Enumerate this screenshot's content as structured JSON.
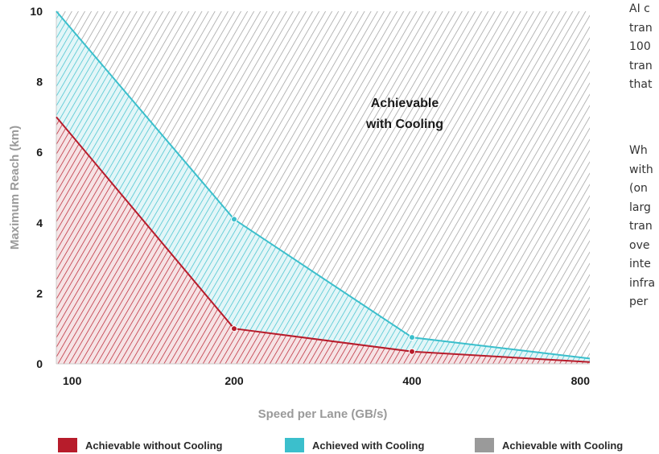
{
  "chart_data": {
    "type": "area",
    "x": [
      100,
      200,
      400,
      800
    ],
    "x_tick_labels": [
      "100",
      "200",
      "400",
      "800"
    ],
    "x_scale": "log",
    "xlabel": "Speed per Lane (GB/s)",
    "ylabel": "Maximum Reach (km)",
    "ylim": [
      0,
      10
    ],
    "y_ticks": [
      0,
      2,
      4,
      6,
      8,
      10
    ],
    "series": [
      {
        "name": "Achievable without Cooling",
        "color": "#b71c2b",
        "values": [
          7.0,
          1.0,
          0.35,
          0.05
        ],
        "marked_points": [
          1,
          2
        ]
      },
      {
        "name": "Achieved with Cooling",
        "color": "#3bbfcc",
        "values": [
          10.3,
          4.1,
          0.75,
          0.15
        ],
        "marked_points": [
          1,
          2
        ]
      }
    ],
    "background_region": {
      "name": "Achievable with Cooling",
      "color": "#9a9a9a"
    },
    "annotation": [
      "Achievable",
      "with Cooling"
    ],
    "legend_position": "bottom"
  },
  "side_text": {
    "paragraph1": "AI c\ntran\n100\ntran\nthat",
    "paragraph2": "Wh\nwith\n(on\nlarg\ntran\nove\ninte\ninfra\nper"
  }
}
